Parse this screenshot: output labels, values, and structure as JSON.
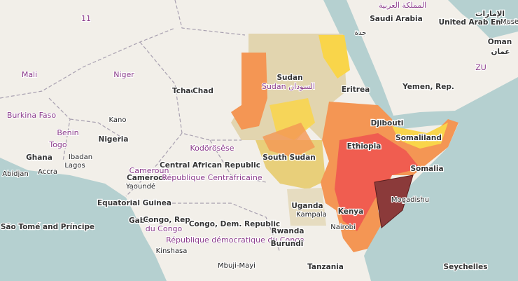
{
  "labels": [
    "11",
    "المملكة العربية",
    "Saudi Arabia",
    "الإمارات",
    "United Arab Emirates",
    "Muse",
    "Oman",
    "عمان",
    "ZU",
    "جدة",
    "Mali",
    "Niger",
    "Tchad",
    "Chad",
    "Sudan",
    "Sudan السودان",
    "Eritrea",
    "Yemen, Rep.",
    "Burkina Faso",
    "Kano",
    "Benin",
    "Togo",
    "Nigeria",
    "Djibouti",
    "Ethiopia",
    "Somaliland",
    "Ghana",
    "Abidjan",
    "Accra",
    "Ibadan",
    "Lagos",
    "Kodörösêse",
    "Central African Republic",
    "Cameroun",
    "Cameroon",
    "Yaoundé",
    "République Centrafricaine",
    "South Sudan",
    "Somalia",
    "Equatorial Guinea",
    "Uganda",
    "Kampala",
    "Kenya",
    "Mogadishu",
    "Gabon",
    "Congo, Rep.",
    "du Congo",
    "Congo, Dem. Republic",
    "République démocratique du Congo",
    "Nairobi",
    "Rwanda",
    "Burundi",
    "São Tomé and Príncipe",
    "Kinshasa",
    "Mbuji-Mayi",
    "Tanzania",
    "Seychelles"
  ]
}
